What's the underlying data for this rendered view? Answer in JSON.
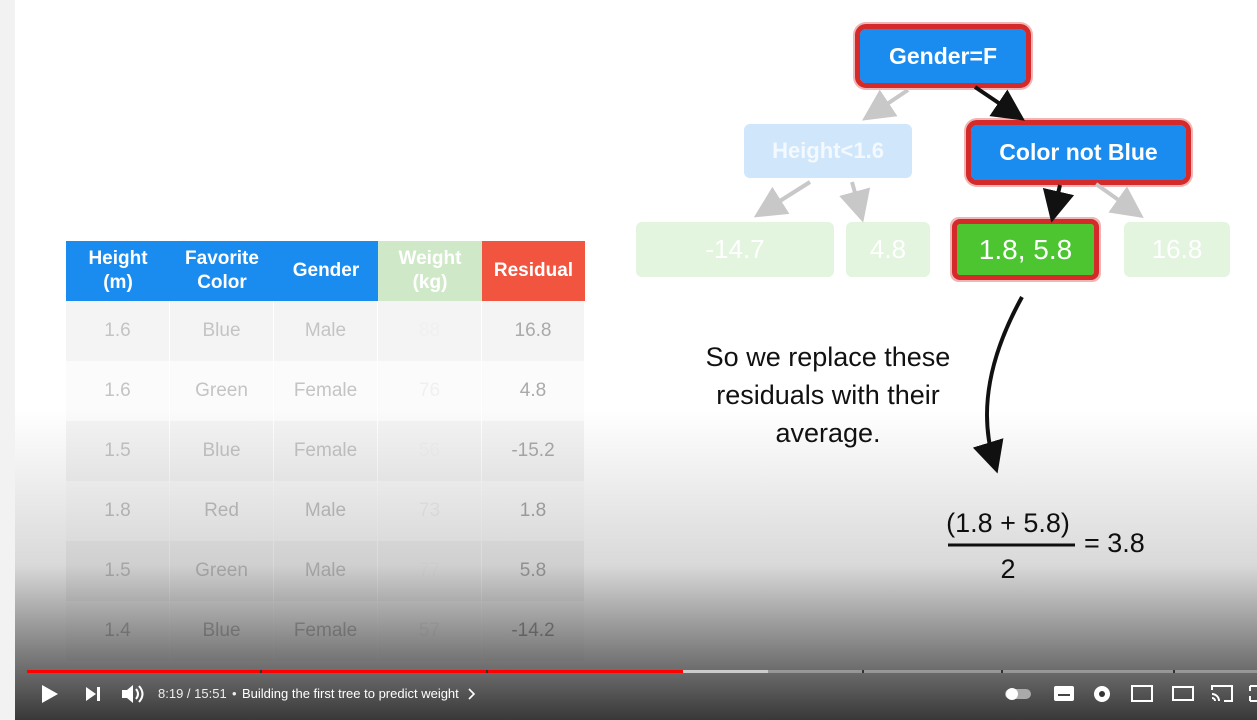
{
  "table": {
    "headers": [
      "Height (m)",
      "Favorite Color",
      "Gender",
      "Weight (kg)",
      "Residual"
    ],
    "rows": [
      [
        "1.6",
        "Blue",
        "Male",
        "88",
        "16.8"
      ],
      [
        "1.6",
        "Green",
        "Female",
        "76",
        "4.8"
      ],
      [
        "1.5",
        "Blue",
        "Female",
        "56",
        "-15.2"
      ],
      [
        "1.8",
        "Red",
        "Male",
        "73",
        "1.8"
      ],
      [
        "1.5",
        "Green",
        "Male",
        "77",
        "5.8"
      ],
      [
        "1.4",
        "Blue",
        "Female",
        "57",
        "-14.2"
      ]
    ]
  },
  "tree": {
    "root": "Gender=F",
    "left": "Height<1.6",
    "right": "Color not Blue",
    "leaves": [
      "-14.7",
      "4.8",
      "1.8, 5.8",
      "16.8"
    ]
  },
  "caption": "So we replace these residuals with their average.",
  "formula": {
    "numerator": "(1.8 + 5.8)",
    "denominator": "2",
    "result": "= 3.8"
  },
  "player": {
    "time": "8:19 / 15:51",
    "separator": "•",
    "chapter": "Building the first tree to predict weight"
  }
}
